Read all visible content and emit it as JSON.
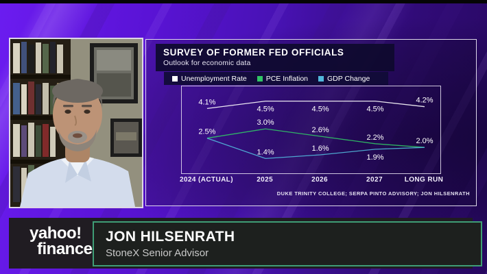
{
  "chart_data": {
    "type": "line",
    "title": "SURVEY OF FORMER FED OFFICIALS",
    "subtitle": "Outlook for economic data",
    "categories": [
      "2024 (ACTUAL)",
      "2025",
      "2026",
      "2027",
      "LONG RUN"
    ],
    "series": [
      {
        "name": "Unemployment Rate",
        "color": "#ffffff",
        "values": [
          4.1,
          4.5,
          4.5,
          4.5,
          4.2
        ],
        "labels": [
          "4.1%",
          "4.5%",
          "4.5%",
          "4.5%",
          "4.2%"
        ],
        "label_pos": [
          "above",
          "below",
          "below",
          "below",
          "above"
        ]
      },
      {
        "name": "PCE Inflation",
        "color": "#31c566",
        "values": [
          2.5,
          3.0,
          2.6,
          2.2,
          2.0
        ],
        "labels": [
          "2.5%",
          "3.0%",
          "2.6%",
          "2.2%",
          "2.0%"
        ],
        "label_pos": [
          "above",
          "above",
          "above",
          "above",
          "above"
        ]
      },
      {
        "name": "GDP Change",
        "color": "#52b8dc",
        "values": [
          2.5,
          1.4,
          1.6,
          1.9,
          2.0
        ],
        "labels": [
          "",
          "1.4%",
          "1.6%",
          "1.9%",
          ""
        ],
        "label_pos": [
          "none",
          "above",
          "above",
          "below",
          "none"
        ]
      }
    ],
    "ylim": [
      0.6,
      5.3
    ],
    "grid": false,
    "legend_position": "top",
    "source": "DUKE TRINITY COLLEGE; SERPA PINTO ADVISORY; JON HILSENRATH"
  },
  "brand": {
    "line1": "yahoo!",
    "line2": "finance"
  },
  "lower_third": {
    "name": "JON HILSENRATH",
    "title": "StoneX Senior Advisor"
  },
  "colors": {
    "background_purple": "#5a13d6",
    "banner_background": "#201c22",
    "name_box_border": "#3f9e76",
    "panel_border": "#f2eefa"
  }
}
